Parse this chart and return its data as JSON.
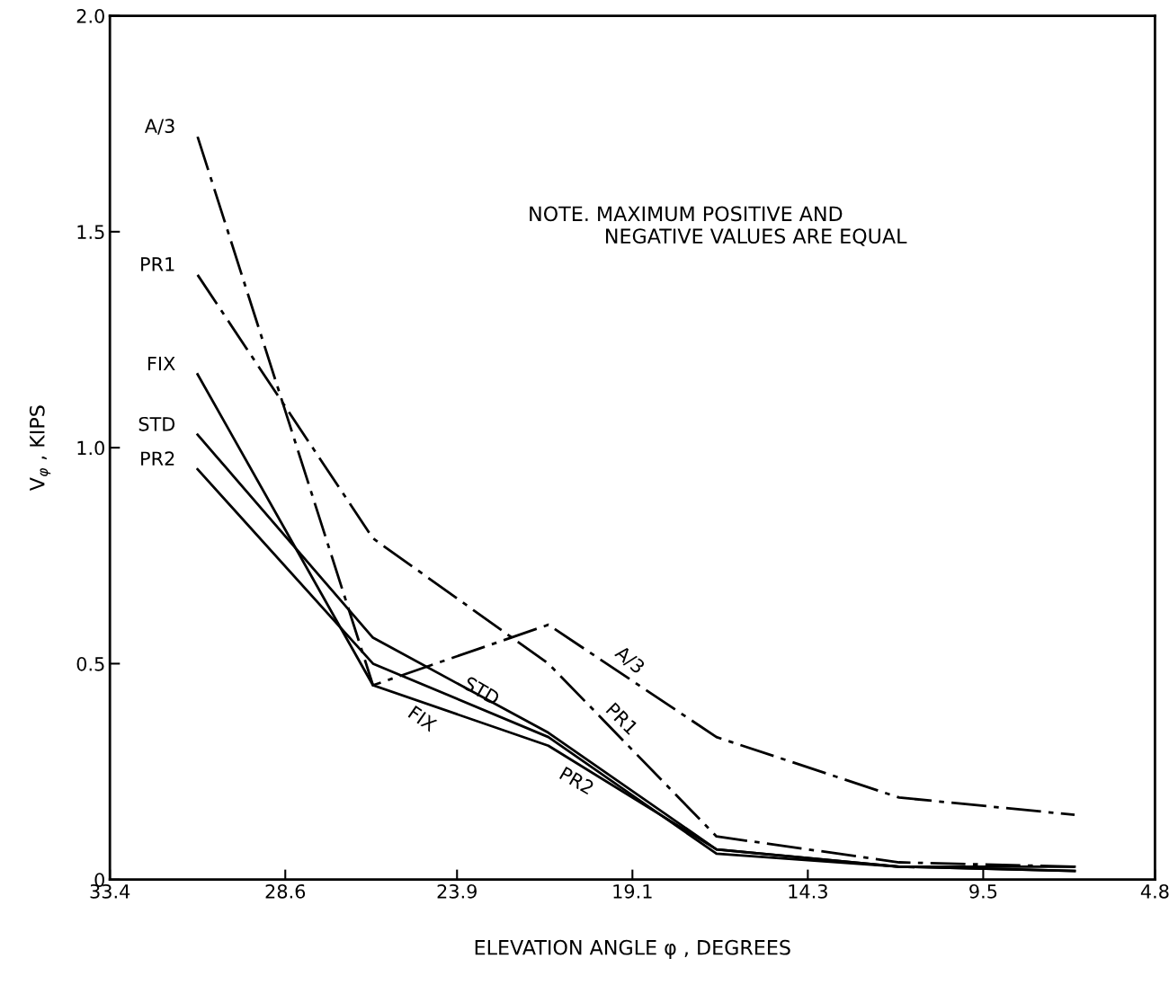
{
  "chart_data": {
    "type": "line",
    "xlabel": "ELEVATION ANGLE φ , DEGREES",
    "ylabel": "V$_{φ}$ , KIPS",
    "x": [
      31.0,
      26.2,
      21.4,
      16.8,
      11.8,
      7.0
    ],
    "series": [
      {
        "name": "A/3",
        "color": "#000000",
        "line_style": "dashed",
        "values": [
          1.72,
          0.45,
          0.59,
          0.33,
          0.19,
          0.15
        ]
      },
      {
        "name": "PR1",
        "color": "#000000",
        "line_style": "dashed",
        "values": [
          1.4,
          0.79,
          0.5,
          0.1,
          0.04,
          0.03
        ]
      },
      {
        "name": "FIX",
        "color": "#000000",
        "line_style": "solid",
        "values": [
          1.17,
          0.45,
          0.31,
          0.07,
          0.03,
          0.02
        ]
      },
      {
        "name": "STD",
        "color": "#000000",
        "line_style": "solid",
        "values": [
          1.03,
          0.56,
          0.34,
          0.07,
          0.03,
          0.03
        ]
      },
      {
        "name": "PR2",
        "color": "#000000",
        "line_style": "solid",
        "values": [
          0.95,
          0.5,
          0.33,
          0.06,
          0.03,
          0.02
        ]
      }
    ],
    "xlim": [
      33.4,
      4.8
    ],
    "xticks": [
      33.4,
      28.6,
      23.9,
      19.1,
      14.3,
      9.5,
      4.8
    ],
    "ylim": [
      0,
      2.0
    ],
    "yticks": [
      0,
      {
        "value": 0.5,
        "label": "0.5"
      },
      {
        "value": 1.0,
        "label": "1.0"
      },
      {
        "value": 1.5,
        "label": "1.5"
      },
      {
        "value": 2.0,
        "label": "2.0"
      }
    ],
    "grid": false,
    "legend": false,
    "marker": "none",
    "annotations": [
      "NOTE. MAXIMUM POSITIVE AND\n            NEGATIVE VALUES ARE EQUAL",
      "A/3",
      "PR1",
      "STD",
      "FIX",
      "PR2"
    ]
  }
}
